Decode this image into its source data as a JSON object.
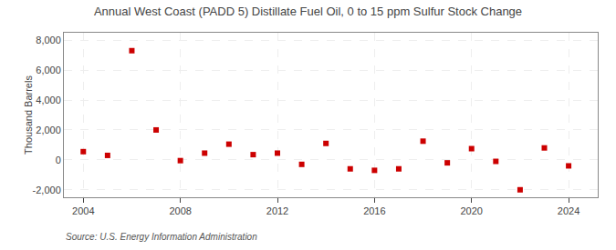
{
  "chart_data": {
    "type": "scatter",
    "title": "Annual West Coast (PADD 5) Distillate Fuel Oil, 0 to 15 ppm Sulfur Stock Change",
    "ylabel": "Thousand Barrels",
    "annotation": "Source: U.S. Energy Information Administration",
    "x": [
      2004,
      2005,
      2006,
      2007,
      2008,
      2009,
      2010,
      2011,
      2012,
      2013,
      2014,
      2015,
      2016,
      2017,
      2018,
      2019,
      2020,
      2021,
      2022,
      2023,
      2024
    ],
    "values": [
      550,
      300,
      7300,
      2000,
      -50,
      450,
      1050,
      350,
      450,
      -300,
      1100,
      -600,
      -700,
      -600,
      1250,
      -200,
      750,
      -100,
      -2000,
      800,
      -400
    ],
    "color": "#cc0000",
    "marker": "square",
    "xlim": [
      2003.2,
      2025.2
    ],
    "xticks": [
      2004,
      2008,
      2012,
      2016,
      2020,
      2024
    ],
    "ylim": [
      -2500,
      8500
    ],
    "yticks": [
      {
        "value": -2000,
        "label": "-2,000"
      },
      0,
      {
        "value": 2000,
        "label": "2,000"
      },
      {
        "value": 4000,
        "label": "4,000"
      },
      {
        "value": 6000,
        "label": "6,000"
      },
      {
        "value": 8000,
        "label": "8,000"
      }
    ],
    "grid": true
  }
}
